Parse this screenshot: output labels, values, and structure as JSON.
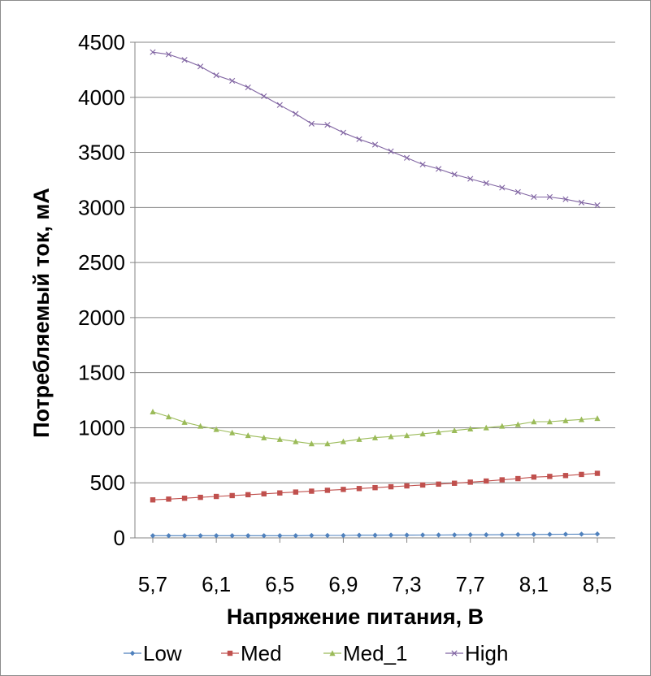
{
  "chart_data": {
    "type": "line",
    "title": "",
    "xlabel": "Напряжение питания, В",
    "ylabel": "Потребляемый ток, мА",
    "ylim": [
      0,
      4500
    ],
    "yticks": [
      "0",
      "500",
      "1000",
      "1500",
      "2000",
      "2500",
      "3000",
      "3500",
      "4000",
      "4500"
    ],
    "xlim": [
      5.7,
      8.5
    ],
    "xticks": [
      "5,7",
      "6,1",
      "6,5",
      "6,9",
      "7,3",
      "7,7",
      "8,1",
      "8,5"
    ],
    "grid": "horizontal",
    "legend": "bottom",
    "x": [
      5.7,
      5.8,
      5.9,
      6.0,
      6.1,
      6.2,
      6.3,
      6.4,
      6.5,
      6.6,
      6.7,
      6.8,
      6.9,
      7.0,
      7.1,
      7.2,
      7.3,
      7.4,
      7.5,
      7.6,
      7.7,
      7.8,
      7.9,
      8.0,
      8.1,
      8.2,
      8.3,
      8.4,
      8.5
    ],
    "series": [
      {
        "name": "Low",
        "color": "#4f81bd",
        "marker": "diamond",
        "values": [
          20,
          20,
          20,
          20,
          20,
          20,
          20,
          20,
          20,
          20,
          22,
          22,
          22,
          24,
          24,
          25,
          25,
          26,
          26,
          27,
          28,
          28,
          29,
          30,
          31,
          32,
          33,
          34,
          35
        ]
      },
      {
        "name": "Med",
        "color": "#c0504d",
        "marker": "square",
        "values": [
          345,
          352,
          360,
          368,
          376,
          384,
          392,
          400,
          408,
          416,
          424,
          432,
          440,
          448,
          456,
          464,
          472,
          480,
          488,
          496,
          506,
          516,
          527,
          538,
          552,
          558,
          566,
          576,
          586
        ]
      },
      {
        "name": "Med_1",
        "color": "#9bbb59",
        "marker": "triangle",
        "values": [
          1145,
          1100,
          1050,
          1015,
          985,
          955,
          930,
          910,
          895,
          875,
          855,
          855,
          875,
          895,
          910,
          920,
          930,
          945,
          960,
          975,
          990,
          1000,
          1015,
          1030,
          1055,
          1055,
          1065,
          1075,
          1085
        ]
      },
      {
        "name": "High",
        "color": "#8064a2",
        "marker": "x",
        "values": [
          4410,
          4390,
          4340,
          4280,
          4200,
          4150,
          4090,
          4010,
          3930,
          3850,
          3760,
          3750,
          3680,
          3620,
          3570,
          3510,
          3450,
          3390,
          3350,
          3300,
          3260,
          3220,
          3180,
          3140,
          3095,
          3095,
          3075,
          3045,
          3020
        ]
      }
    ]
  }
}
